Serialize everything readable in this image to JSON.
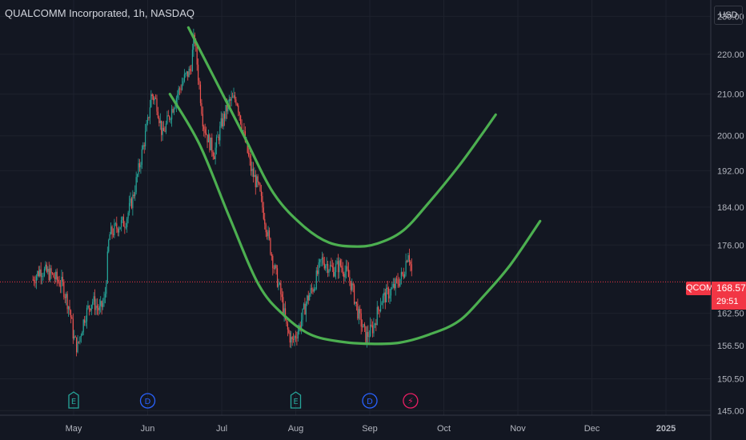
{
  "header": {
    "title": "QUALCOMM Incorporated, 1h, NASDAQ",
    "currency": "USD"
  },
  "last_price": {
    "symbol": "QCOM",
    "price": "168.57",
    "countdown": "29:51",
    "value": 168.57
  },
  "events": [
    {
      "type": "earnings",
      "glyph": "E",
      "month_index": 0
    },
    {
      "type": "dividend",
      "glyph": "D",
      "month_index": 1
    },
    {
      "type": "earnings",
      "glyph": "E",
      "month_index": 3
    },
    {
      "type": "dividend",
      "glyph": "D",
      "month_index": 4
    },
    {
      "type": "split",
      "glyph": "⚡",
      "month_index": 4.55
    }
  ],
  "colors": {
    "background": "#131722",
    "up": "#26a69a",
    "down": "#ef5350",
    "price_line": "#f23645",
    "trend": "#4caf50",
    "axis_text": "#b2b5be",
    "earnings": "#26a69a",
    "dividend": "#2962ff",
    "split": "#e91e63"
  },
  "chart_data": {
    "type": "candlestick",
    "title": "QUALCOMM Incorporated, 1h, NASDAQ",
    "y_axis": {
      "ticks": [
        "230.00",
        "220.00",
        "210.00",
        "200.00",
        "192.00",
        "184.00",
        "176.00",
        "162.50",
        "156.50",
        "150.50",
        "145.00"
      ],
      "tick_values": [
        230,
        220,
        210,
        200,
        192,
        184,
        176,
        162.5,
        156.5,
        150.5,
        145
      ],
      "scale": "log",
      "range": [
        144.5,
        234
      ]
    },
    "x_axis": {
      "ticks": [
        "May",
        "Jun",
        "Jul",
        "Aug",
        "Sep",
        "Oct",
        "Nov",
        "Dec",
        "2025"
      ],
      "start_month_offset": -0.55
    },
    "price_path": [
      {
        "m": -0.55,
        "p": 169
      },
      {
        "m": -0.45,
        "p": 171
      },
      {
        "m": -0.3,
        "p": 170
      },
      {
        "m": -0.15,
        "p": 168
      },
      {
        "m": -0.05,
        "p": 163
      },
      {
        "m": 0.0,
        "p": 158
      },
      {
        "m": 0.05,
        "p": 156
      },
      {
        "m": 0.15,
        "p": 162
      },
      {
        "m": 0.25,
        "p": 165
      },
      {
        "m": 0.35,
        "p": 163
      },
      {
        "m": 0.42,
        "p": 165
      },
      {
        "m": 0.48,
        "p": 178
      },
      {
        "m": 0.6,
        "p": 180
      },
      {
        "m": 0.7,
        "p": 181
      },
      {
        "m": 0.8,
        "p": 186
      },
      {
        "m": 0.9,
        "p": 194
      },
      {
        "m": 1.0,
        "p": 203
      },
      {
        "m": 1.05,
        "p": 210
      },
      {
        "m": 1.12,
        "p": 208
      },
      {
        "m": 1.2,
        "p": 200
      },
      {
        "m": 1.3,
        "p": 205
      },
      {
        "m": 1.4,
        "p": 210
      },
      {
        "m": 1.5,
        "p": 214
      },
      {
        "m": 1.58,
        "p": 216
      },
      {
        "m": 1.63,
        "p": 225
      },
      {
        "m": 1.68,
        "p": 215
      },
      {
        "m": 1.75,
        "p": 203
      },
      {
        "m": 1.82,
        "p": 199
      },
      {
        "m": 1.9,
        "p": 196
      },
      {
        "m": 2.0,
        "p": 203
      },
      {
        "m": 2.1,
        "p": 208
      },
      {
        "m": 2.2,
        "p": 209
      },
      {
        "m": 2.3,
        "p": 200
      },
      {
        "m": 2.4,
        "p": 192
      },
      {
        "m": 2.5,
        "p": 188
      },
      {
        "m": 2.6,
        "p": 180
      },
      {
        "m": 2.7,
        "p": 172
      },
      {
        "m": 2.8,
        "p": 166
      },
      {
        "m": 2.87,
        "p": 160
      },
      {
        "m": 2.95,
        "p": 157
      },
      {
        "m": 3.05,
        "p": 160
      },
      {
        "m": 3.15,
        "p": 165
      },
      {
        "m": 3.25,
        "p": 168
      },
      {
        "m": 3.35,
        "p": 173
      },
      {
        "m": 3.5,
        "p": 171
      },
      {
        "m": 3.6,
        "p": 172
      },
      {
        "m": 3.7,
        "p": 170
      },
      {
        "m": 3.75,
        "p": 168
      },
      {
        "m": 3.85,
        "p": 162
      },
      {
        "m": 3.95,
        "p": 158
      },
      {
        "m": 4.05,
        "p": 160
      },
      {
        "m": 4.15,
        "p": 165
      },
      {
        "m": 4.3,
        "p": 167
      },
      {
        "m": 4.45,
        "p": 170
      },
      {
        "m": 4.52,
        "p": 175
      },
      {
        "m": 4.58,
        "p": 169
      }
    ],
    "trend_lines": [
      {
        "name": "",
        "points": [
          [
            1.55,
            227
          ],
          [
            1.9,
            214
          ],
          [
            2.3,
            200
          ],
          [
            2.7,
            187
          ],
          [
            3.1,
            180
          ],
          [
            3.45,
            176.5
          ],
          [
            3.8,
            175.7
          ],
          [
            4.1,
            176.3
          ],
          [
            4.45,
            179
          ],
          [
            4.8,
            185
          ],
          [
            5.2,
            193
          ],
          [
            5.5,
            200
          ],
          [
            5.7,
            205
          ]
        ]
      },
      {
        "name": "",
        "points": [
          [
            1.3,
            210
          ],
          [
            1.7,
            198
          ],
          [
            2.1,
            182
          ],
          [
            2.5,
            168
          ],
          [
            2.85,
            162
          ],
          [
            3.2,
            158.5
          ],
          [
            3.6,
            157.2
          ],
          [
            4.0,
            156.8
          ],
          [
            4.4,
            157
          ],
          [
            4.8,
            158.5
          ],
          [
            5.2,
            161
          ],
          [
            5.55,
            166
          ],
          [
            5.9,
            172
          ],
          [
            6.3,
            181
          ]
        ]
      }
    ]
  }
}
